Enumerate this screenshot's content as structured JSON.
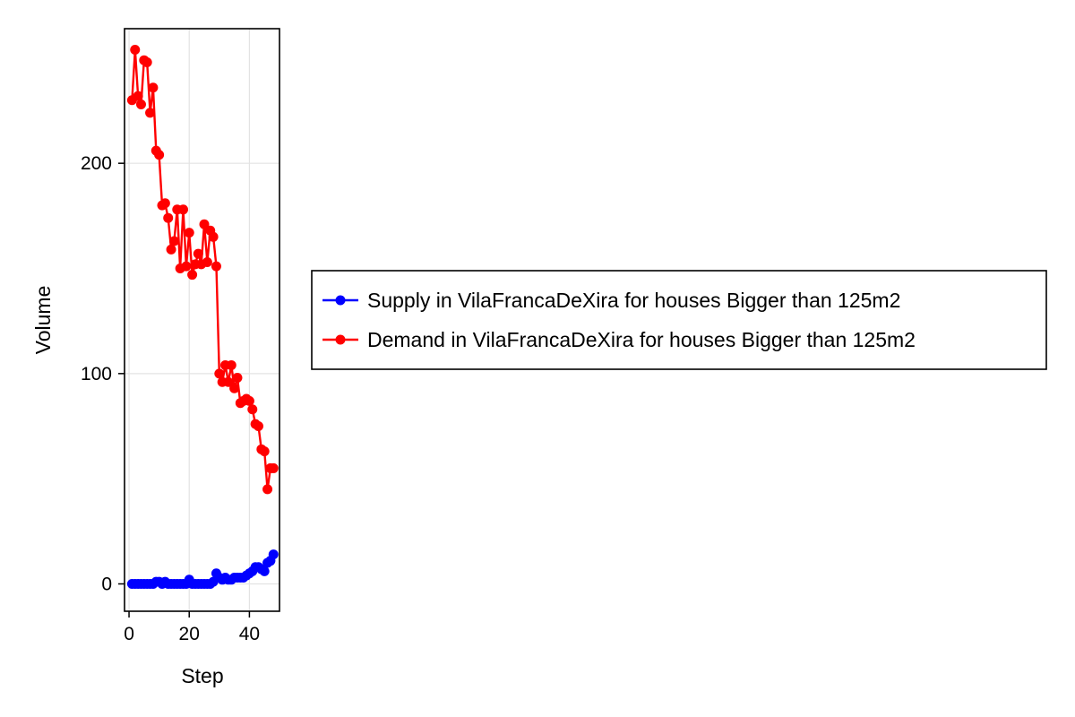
{
  "chart_data": {
    "type": "line",
    "title": "",
    "xlabel": "Step",
    "ylabel": "Volume",
    "xlim": [
      -1.5,
      50
    ],
    "ylim": [
      -13,
      264
    ],
    "xticks": [
      0,
      20,
      40
    ],
    "yticks": [
      0,
      100,
      200
    ],
    "grid": true,
    "legend_position": "right",
    "series": [
      {
        "name": "Supply in VilaFrancaDeXira for houses Bigger than 125m2",
        "color": "#0000ff",
        "marker": "circle",
        "x": [
          1,
          2,
          3,
          4,
          5,
          6,
          7,
          8,
          9,
          10,
          11,
          12,
          13,
          14,
          15,
          16,
          17,
          18,
          19,
          20,
          21,
          22,
          23,
          24,
          25,
          26,
          27,
          28,
          29,
          30,
          31,
          32,
          33,
          34,
          35,
          36,
          37,
          38,
          39,
          40,
          41,
          42,
          43,
          44,
          45,
          46,
          47,
          48
        ],
        "y": [
          0,
          0,
          0,
          0,
          0,
          0,
          0,
          0,
          1,
          1,
          0,
          1,
          0,
          0,
          0,
          0,
          0,
          0,
          0,
          2,
          0,
          0,
          0,
          0,
          0,
          0,
          0,
          1,
          5,
          3,
          2,
          3,
          2,
          2,
          3,
          3,
          3,
          3,
          4,
          5,
          6,
          8,
          8,
          7,
          6,
          10,
          11,
          14
        ]
      },
      {
        "name": "Demand in VilaFrancaDeXira for houses Bigger than 125m2",
        "color": "#ff0000",
        "marker": "circle",
        "x": [
          1,
          2,
          3,
          4,
          5,
          6,
          7,
          8,
          9,
          10,
          11,
          12,
          13,
          14,
          15,
          16,
          17,
          18,
          19,
          20,
          21,
          22,
          23,
          24,
          25,
          26,
          27,
          28,
          29,
          30,
          31,
          32,
          33,
          34,
          35,
          36,
          37,
          38,
          39,
          40,
          41,
          42,
          43,
          44,
          45,
          46,
          47,
          48
        ],
        "y": [
          230,
          254,
          232,
          228,
          249,
          248,
          224,
          236,
          206,
          204,
          180,
          181,
          174,
          159,
          163,
          178,
          150,
          178,
          151,
          167,
          147,
          152,
          157,
          152,
          171,
          153,
          168,
          165,
          151,
          100,
          96,
          104,
          96,
          104,
          93,
          98,
          86,
          87,
          88,
          87,
          83,
          76,
          75,
          64,
          63,
          45,
          55,
          55
        ]
      }
    ]
  }
}
